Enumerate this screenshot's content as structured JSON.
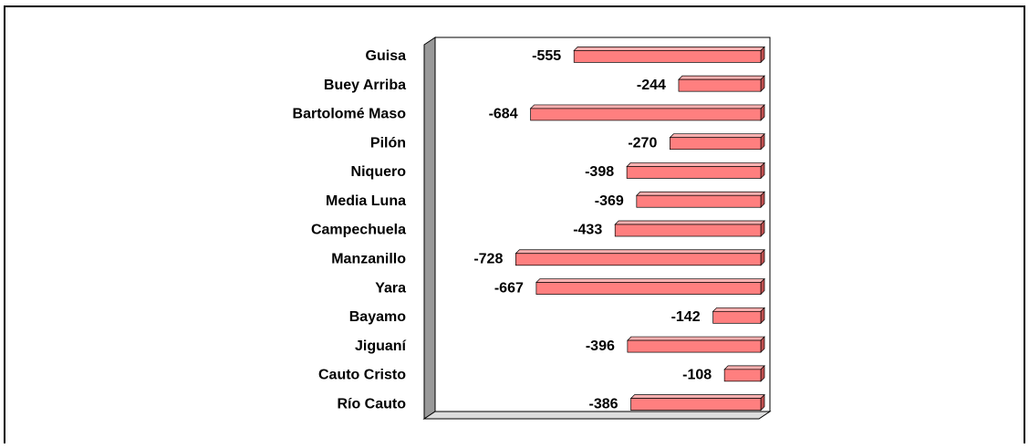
{
  "chart_data": {
    "type": "bar",
    "orientation": "horizontal",
    "categories": [
      "Guisa",
      "Buey Arriba",
      "Bartolomé Maso",
      "Pilón",
      "Niquero",
      "Media Luna",
      "Campechuela",
      "Manzanillo",
      "Yara",
      "Bayamo",
      "Jiguaní",
      "Cauto Cristo",
      "Río Cauto"
    ],
    "values": [
      -555,
      -244,
      -684,
      -270,
      -398,
      -369,
      -433,
      -728,
      -667,
      -142,
      -396,
      -108,
      -386
    ],
    "color": "#ff7f7f",
    "xlim": [
      -1000,
      0
    ]
  }
}
